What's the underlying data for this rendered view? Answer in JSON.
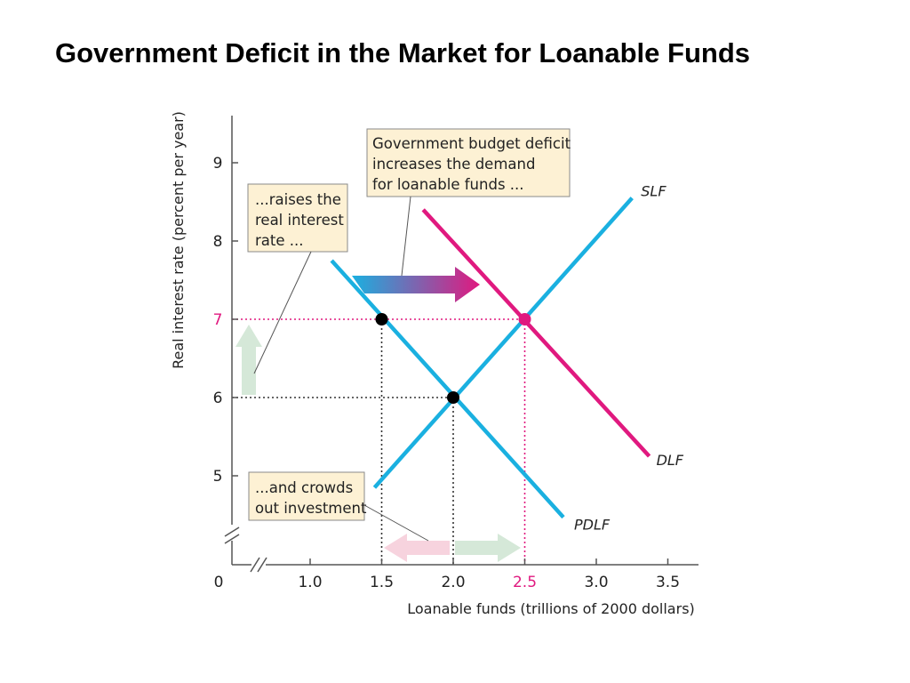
{
  "slide": {
    "title": "Government Deficit in the Market for Loanable Funds"
  },
  "chart_data": {
    "type": "line",
    "xlabel": "Loanable funds (trillions of 2000 dollars)",
    "ylabel": "Real interest rate (percent per year)",
    "x_origin_label": "0",
    "x_ticks": [
      {
        "value": 1.0,
        "label": "1.0"
      },
      {
        "value": 1.5,
        "label": "1.5"
      },
      {
        "value": 2.0,
        "label": "2.0"
      },
      {
        "value": 2.5,
        "label": "2.5",
        "highlight": true
      },
      {
        "value": 3.0,
        "label": "3.0"
      },
      {
        "value": 3.5,
        "label": "3.5"
      }
    ],
    "y_ticks": [
      {
        "value": 5,
        "label": "5"
      },
      {
        "value": 6,
        "label": "6"
      },
      {
        "value": 7,
        "label": "7",
        "highlight": true
      },
      {
        "value": 8,
        "label": "8"
      },
      {
        "value": 9,
        "label": "9"
      }
    ],
    "xlim": [
      0.5,
      3.6
    ],
    "ylim": [
      4.0,
      9.6
    ],
    "axis_breaks": true,
    "series": [
      {
        "name": "SLF",
        "color": "#1ab0e0",
        "points": [
          [
            1.45,
            4.85
          ],
          [
            3.25,
            8.55
          ]
        ]
      },
      {
        "name": "PDLF",
        "color": "#1ab0e0",
        "points": [
          [
            1.15,
            7.75
          ],
          [
            2.77,
            4.47
          ]
        ]
      },
      {
        "name": "DLF",
        "color": "#e0197f",
        "points": [
          [
            1.79,
            8.4
          ],
          [
            3.37,
            5.25
          ]
        ]
      }
    ],
    "equilibria": [
      {
        "x": 2.0,
        "y": 6,
        "color": "#000000"
      },
      {
        "x": 1.5,
        "y": 7,
        "color": "#000000"
      },
      {
        "x": 2.5,
        "y": 7,
        "color": "#e0197f"
      }
    ],
    "reference_lines": [
      {
        "kind": "horizontal",
        "y": 6,
        "x_to": 2.0,
        "color": "#333333"
      },
      {
        "kind": "horizontal",
        "y": 7,
        "x_to": 2.5,
        "color": "#e0197f"
      },
      {
        "kind": "vertical",
        "x": 1.5,
        "y_to": 7,
        "color": "#333333"
      },
      {
        "kind": "vertical",
        "x": 2.0,
        "y_to": 6,
        "color": "#333333"
      },
      {
        "kind": "vertical",
        "x": 2.5,
        "y_to": 7,
        "color": "#e0197f"
      }
    ],
    "annotations": [
      {
        "lines": [
          "Government budget deficit",
          "increases the demand",
          "for loanable funds ..."
        ]
      },
      {
        "lines": [
          "...raises the",
          "real interest",
          "rate ..."
        ]
      },
      {
        "lines": [
          "...and crowds",
          "out investment"
        ]
      }
    ],
    "arrows": [
      {
        "meaning": "demand shifts right",
        "colors": [
          "#1ab0e0",
          "#e0197f"
        ]
      },
      {
        "meaning": "interest rate rises",
        "color": "#d5e8d8"
      },
      {
        "meaning": "investment falls",
        "color": "#f7d3de"
      },
      {
        "meaning": "saving increases",
        "color": "#d5e8d8"
      }
    ],
    "grid": false,
    "legend": "none"
  }
}
